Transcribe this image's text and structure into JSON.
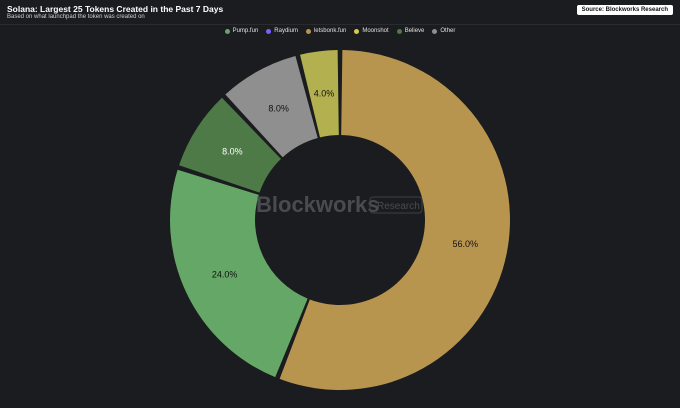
{
  "header": {
    "title": "Solana: Largest 25 Tokens Created in the Past 7 Days",
    "subtitle": "Based on what launchpad the token was created on",
    "source": "Source: Blockworks Research"
  },
  "watermark": {
    "brand": "Blockworks",
    "tag": "Research"
  },
  "legend": [
    {
      "name": "Pump.fun",
      "color": "#65a766"
    },
    {
      "name": "Raydium",
      "color": "#7b61ff"
    },
    {
      "name": "letsbonk.fun",
      "color": "#b8954f"
    },
    {
      "name": "Moonshot",
      "color": "#d8c94c"
    },
    {
      "name": "Believe",
      "color": "#4d7a47"
    },
    {
      "name": "Other",
      "color": "#8f8f8f"
    }
  ],
  "chart_data": {
    "type": "pie",
    "donut": true,
    "title": "Solana: Largest 25 Tokens Created in the Past 7 Days",
    "subtitle": "Based on what launchpad the token was created on",
    "legend_position": "top-center",
    "start_angle_deg": 0,
    "slices": [
      {
        "name": "letsbonk.fun",
        "value": 56.0,
        "label": "56.0%",
        "color": "#b8954f",
        "label_color": "#111111"
      },
      {
        "name": "Pump.fun",
        "value": 24.0,
        "label": "24.0%",
        "color": "#65a766",
        "label_color": "#111111"
      },
      {
        "name": "Believe",
        "value": 8.0,
        "label": "8.0%",
        "color": "#4d7a47",
        "label_color": "#ffffff"
      },
      {
        "name": "Other",
        "value": 8.0,
        "label": "8.0%",
        "color": "#8f8f8f",
        "label_color": "#111111"
      },
      {
        "name": "Moonshot",
        "value": 4.0,
        "label": "4.0%",
        "color": "#b3b04f",
        "label_color": "#111111"
      }
    ]
  }
}
